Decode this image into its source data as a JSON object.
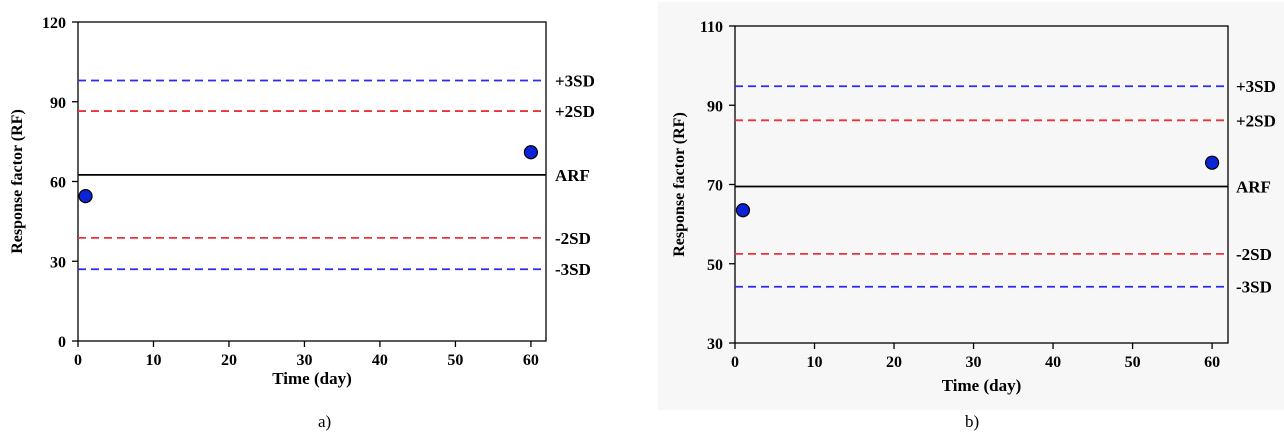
{
  "captions": [
    "a)",
    "b)"
  ],
  "chart_data": [
    {
      "type": "scatter",
      "title": "",
      "xlabel": "Time (day)",
      "ylabel": "Response factor (RF)",
      "xlim": [
        0,
        62
      ],
      "ylim": [
        0,
        120
      ],
      "xticks": [
        0,
        10,
        20,
        30,
        40,
        50,
        60
      ],
      "yticks": [
        0,
        30,
        60,
        90,
        120
      ],
      "grid": false,
      "points": [
        {
          "x": 1,
          "y": 54.5
        },
        {
          "x": 60,
          "y": 71
        }
      ],
      "reference_lines": [
        {
          "label": "+3SD",
          "y": 98,
          "color": "#2a2af0",
          "style": "dashed"
        },
        {
          "label": "+2SD",
          "y": 86.5,
          "color": "#e8343a",
          "style": "dashed"
        },
        {
          "label": "ARF",
          "y": 62.5,
          "color": "#000000",
          "style": "solid"
        },
        {
          "label": "-2SD",
          "y": 38.8,
          "color": "#e8343a",
          "style": "dashed"
        },
        {
          "label": "-3SD",
          "y": 27,
          "color": "#2a2af0",
          "style": "dashed"
        }
      ],
      "point_color": "#0b24d6"
    },
    {
      "type": "scatter",
      "title": "",
      "xlabel": "Time (day)",
      "ylabel": "Response factor (RF)",
      "xlim": [
        0,
        62
      ],
      "ylim": [
        30,
        110
      ],
      "xticks": [
        0,
        10,
        20,
        30,
        40,
        50,
        60
      ],
      "yticks": [
        30,
        50,
        70,
        90,
        110
      ],
      "grid": false,
      "points": [
        {
          "x": 1,
          "y": 63.5
        },
        {
          "x": 60,
          "y": 75.5
        }
      ],
      "reference_lines": [
        {
          "label": "+3SD",
          "y": 94.8,
          "color": "#2a2af0",
          "style": "dashed"
        },
        {
          "label": "+2SD",
          "y": 86.2,
          "color": "#e8343a",
          "style": "dashed"
        },
        {
          "label": "ARF",
          "y": 69.5,
          "color": "#000000",
          "style": "solid"
        },
        {
          "label": "-2SD",
          "y": 52.5,
          "color": "#e8343a",
          "style": "dashed"
        },
        {
          "label": "-3SD",
          "y": 44.2,
          "color": "#2a2af0",
          "style": "dashed"
        }
      ],
      "point_color": "#0b24d6"
    }
  ]
}
